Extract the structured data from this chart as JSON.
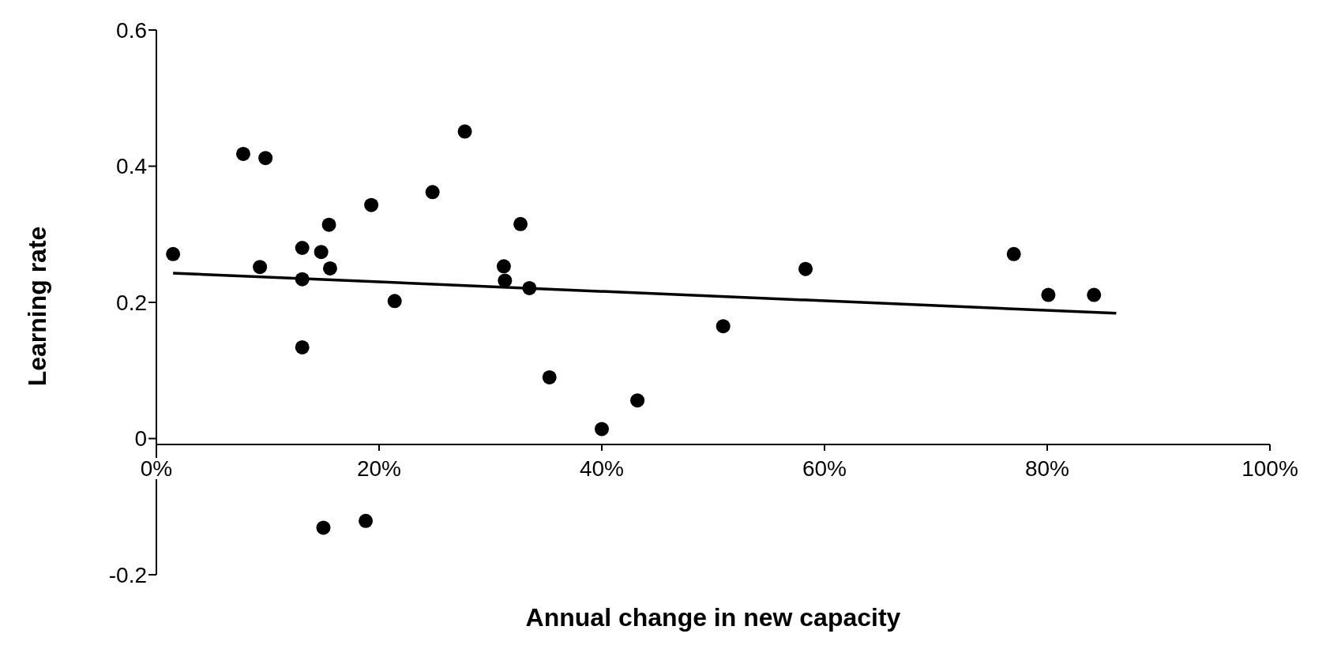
{
  "chart_data": {
    "type": "scatter",
    "xlabel": "Annual change in new capacity",
    "ylabel": "Learning rate",
    "xlim": [
      0,
      100
    ],
    "xticks": [
      {
        "value": 0,
        "label": "0%"
      },
      {
        "value": 20,
        "label": "20%"
      },
      {
        "value": 40,
        "label": "40%"
      },
      {
        "value": 60,
        "label": "60%"
      },
      {
        "value": 80,
        "label": "80%"
      },
      {
        "value": 100,
        "label": "100%"
      }
    ],
    "ylim": [
      -0.2,
      0.6
    ],
    "yticks": [
      -0.2,
      0,
      0.2,
      0.4,
      0.6
    ],
    "marker": "circle",
    "series": [
      {
        "color": "#000000",
        "x": [
          1.5,
          7.8,
          9.8,
          9.3,
          13.1,
          13.1,
          13.1,
          14.8,
          15.5,
          15.6,
          15.0,
          18.8,
          19.3,
          21.4,
          24.8,
          27.7,
          32.7,
          31.2,
          31.3,
          33.5,
          35.3,
          40.0,
          43.2,
          50.9,
          58.3,
          77.0,
          80.1,
          84.2
        ],
        "values": [
          0.271,
          0.418,
          0.412,
          0.252,
          0.28,
          0.234,
          0.134,
          0.274,
          0.314,
          0.25,
          -0.131,
          -0.121,
          0.343,
          0.202,
          0.362,
          0.451,
          0.315,
          0.253,
          0.232,
          0.221,
          0.09,
          0.014,
          0.056,
          0.165,
          0.249,
          0.271,
          0.211,
          0.211
        ]
      },
      {
        "type": "line",
        "color": "#000000",
        "marker": "none",
        "x": [
          1.5,
          86.2
        ],
        "values": [
          0.243,
          0.184
        ]
      }
    ]
  }
}
